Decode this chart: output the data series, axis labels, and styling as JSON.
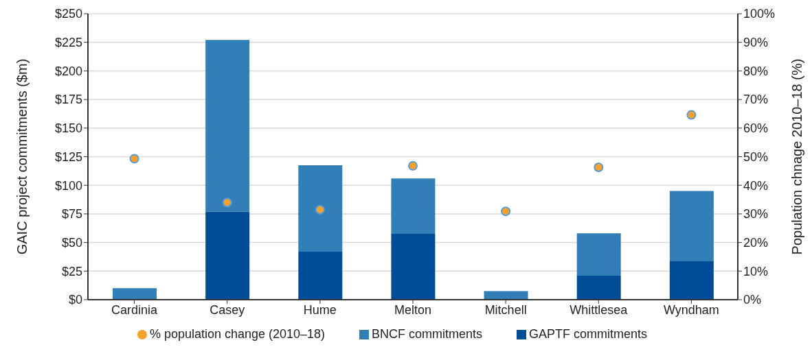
{
  "chart_data": {
    "type": "bar",
    "stacked": true,
    "ylabel": "GAIC project commitments  ($m)",
    "y2label": "Population chnage 2010–18 (%)",
    "categories": [
      "Cardinia",
      "Casey",
      "Hume",
      "Melton",
      "Mitchell",
      "Whittlesea",
      "Wyndham"
    ],
    "series": [
      {
        "name": "GAPTF commitments",
        "color": "#004c97",
        "values": [
          1,
          77,
          42,
          58,
          0,
          21,
          34
        ]
      },
      {
        "name": "BNCF commitments",
        "color": "#327fb8",
        "values": [
          9,
          150,
          75.5,
          48,
          7.5,
          37,
          61
        ]
      },
      {
        "name": "% population change (2010–18)",
        "type": "scatter",
        "axis": "y2",
        "color": "#f7a12d",
        "values": [
          49.3,
          34,
          31.5,
          46.8,
          30.9,
          46.3,
          64.6
        ]
      }
    ],
    "ylim": [
      0,
      250
    ],
    "yticks": [
      {
        "value": 0,
        "label": "$0"
      },
      {
        "value": 25,
        "label": "$25"
      },
      {
        "value": 50,
        "label": "$50"
      },
      {
        "value": 75,
        "label": "$75"
      },
      {
        "value": 100,
        "label": "$100"
      },
      {
        "value": 125,
        "label": "$125"
      },
      {
        "value": 150,
        "label": "$150"
      },
      {
        "value": 175,
        "label": "$175"
      },
      {
        "value": 200,
        "label": "$200"
      },
      {
        "value": 225,
        "label": "$225"
      },
      {
        "value": 250,
        "label": "$250"
      }
    ],
    "y2lim": [
      0,
      100
    ],
    "y2ticks": [
      {
        "value": 0,
        "label": "0%"
      },
      {
        "value": 10,
        "label": "10%"
      },
      {
        "value": 20,
        "label": "20%"
      },
      {
        "value": 30,
        "label": "30%"
      },
      {
        "value": 40,
        "label": "40%"
      },
      {
        "value": 50,
        "label": "50%"
      },
      {
        "value": 60,
        "label": "60%"
      },
      {
        "value": 70,
        "label": "70%"
      },
      {
        "value": 80,
        "label": "80%"
      },
      {
        "value": 90,
        "label": "90%"
      },
      {
        "value": 100,
        "label": "100%"
      }
    ],
    "grid": "y",
    "legend": "bottom",
    "marker": "circle"
  }
}
